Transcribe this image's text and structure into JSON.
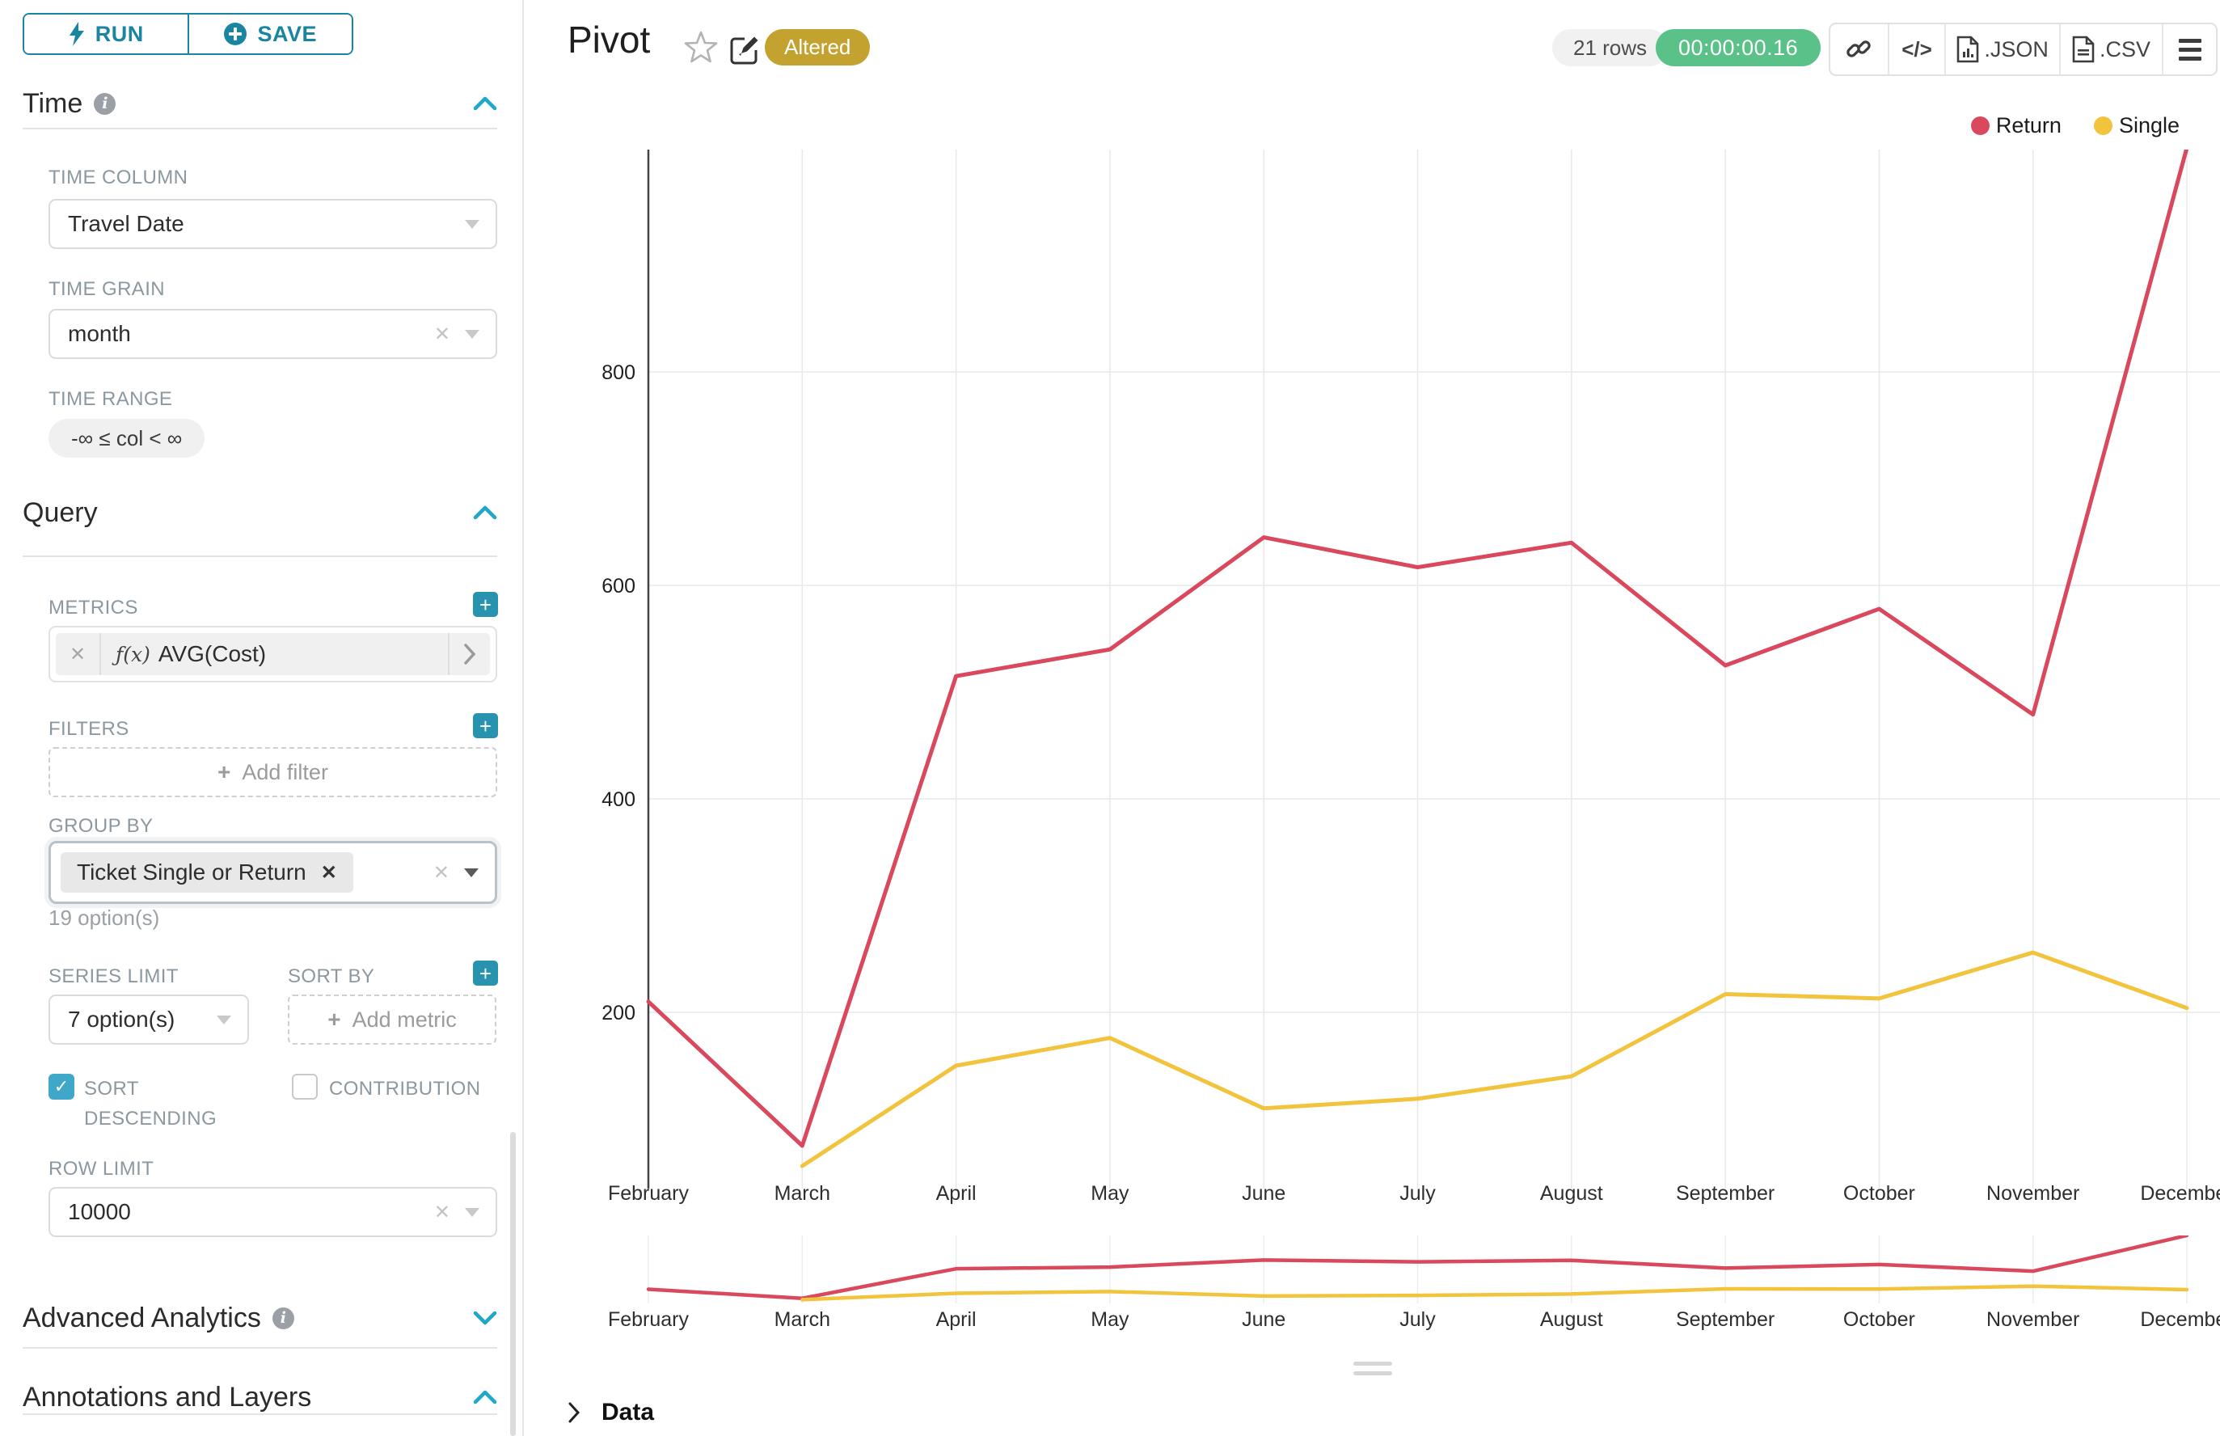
{
  "sidebar": {
    "run_label": "RUN",
    "save_label": "SAVE",
    "time": {
      "title": "Time",
      "column_label": "TIME COLUMN",
      "column_value": "Travel Date",
      "grain_label": "TIME GRAIN",
      "grain_value": "month",
      "range_label": "TIME RANGE",
      "range_value": "-∞ ≤ col < ∞"
    },
    "query": {
      "title": "Query",
      "metrics_label": "METRICS",
      "metric_fx": "ƒ(x)",
      "metric_value": "AVG(Cost)",
      "filters_label": "FILTERS",
      "add_filter": "Add filter",
      "group_by_label": "GROUP BY",
      "group_by_chip": "Ticket Single or Return",
      "group_by_hint": "19 option(s)",
      "series_limit_label": "SERIES LIMIT",
      "series_limit_value": "7 option(s)",
      "sort_by_label": "SORT BY",
      "add_metric": "Add metric",
      "sort_descending_label": "SORT DESCENDING",
      "sort_descending_checked": true,
      "contribution_label": "CONTRIBUTION",
      "contribution_checked": false,
      "row_limit_label": "ROW LIMIT",
      "row_limit_value": "10000"
    },
    "advanced": {
      "title": "Advanced Analytics"
    },
    "annotations": {
      "title": "Annotations and Layers"
    }
  },
  "header": {
    "title": "Pivot",
    "altered": "Altered",
    "rows": "21 rows",
    "timer": "00:00:00.16",
    "code_label": "</>",
    "json_label": ".JSON",
    "csv_label": ".CSV"
  },
  "data_panel": {
    "title": "Data"
  },
  "colors": {
    "accent": "#20a7c9",
    "teal_dark": "#1a85a0",
    "success_green": "#5ac189",
    "altered_gold": "#c3a22f",
    "return_red": "#d9485c",
    "single_yellow": "#f2c43e"
  },
  "chart_data": {
    "type": "line",
    "title": "Pivot",
    "categories": [
      "February",
      "March",
      "April",
      "May",
      "June",
      "July",
      "August",
      "September",
      "October",
      "November",
      "December"
    ],
    "series": [
      {
        "name": "Return",
        "color": "#d9485c",
        "values": [
          210,
          75,
          515,
          540,
          645,
          617,
          640,
          525,
          578,
          479,
          1010
        ]
      },
      {
        "name": "Single",
        "color": "#f2c43e",
        "values": [
          null,
          56,
          150,
          176,
          110,
          119,
          140,
          217,
          213,
          256,
          204
        ]
      }
    ],
    "xlabel": "",
    "ylabel": "",
    "yticks": [
      200,
      400,
      600,
      800
    ],
    "ylim": [
      35,
      1010
    ],
    "grid": true,
    "legend_position": "top-right",
    "has_preview_minichart": true
  }
}
